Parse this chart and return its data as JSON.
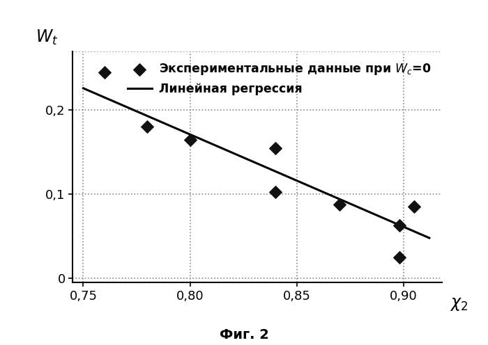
{
  "scatter_x": [
    0.76,
    0.78,
    0.8,
    0.84,
    0.84,
    0.87,
    0.898,
    0.898,
    0.905
  ],
  "scatter_y": [
    0.245,
    0.18,
    0.165,
    0.155,
    0.103,
    0.088,
    0.063,
    0.025,
    0.085
  ],
  "line_x": [
    0.75,
    0.912
  ],
  "line_y": [
    0.226,
    0.048
  ],
  "xlim": [
    0.745,
    0.918
  ],
  "ylim": [
    -0.005,
    0.27
  ],
  "xticks": [
    0.75,
    0.8,
    0.85,
    0.9
  ],
  "xticklabels": [
    "0,75",
    "0,80",
    "0,85",
    "0,90"
  ],
  "yticks": [
    0.0,
    0.1,
    0.2
  ],
  "yticklabels": [
    "0",
    "0,1",
    "0,2"
  ],
  "legend_scatter": "Экспериментальные данные при $W_c$=0",
  "legend_line": "Линейная регрессия",
  "fig_label": "Фиг. 2",
  "scatter_color": "#111111",
  "line_color": "#000000",
  "grid_color": "#888888",
  "background_color": "#ffffff",
  "ylabel_text": "$W_t$",
  "xlabel_text": "$\\chi_2$"
}
